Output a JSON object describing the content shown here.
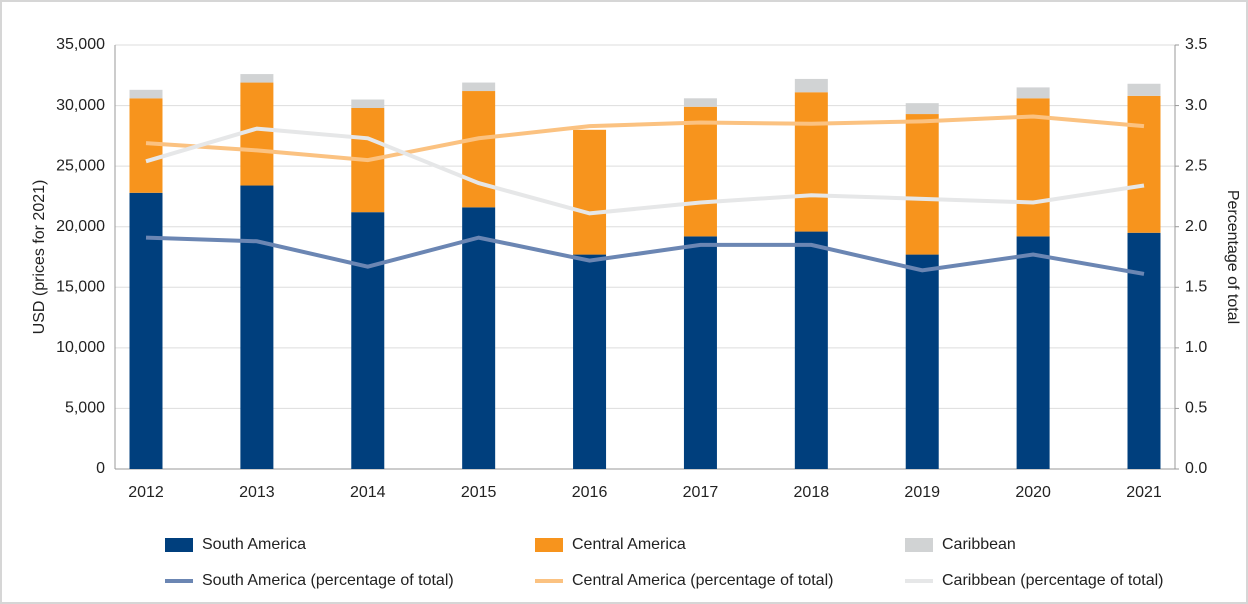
{
  "chart_data": {
    "type": "bar",
    "stacked": true,
    "categories": [
      "2012",
      "2013",
      "2014",
      "2015",
      "2016",
      "2017",
      "2018",
      "2019",
      "2020",
      "2021"
    ],
    "ylabel": "USD (prices for 2021)",
    "y2label": "Percentage of total",
    "ylim": [
      0,
      35000
    ],
    "yticks": [
      0,
      {
        "value": 5000,
        "label": "5,000"
      },
      {
        "value": 10000,
        "label": "10,000"
      },
      {
        "value": 15000,
        "label": "15,000"
      },
      {
        "value": 20000,
        "label": "20,000"
      },
      {
        "value": 25000,
        "label": "25,000"
      },
      {
        "value": 30000,
        "label": "30,000"
      },
      {
        "value": 35000,
        "label": "35,000"
      }
    ],
    "y2lim": [
      0,
      3.5
    ],
    "y2ticks": [
      {
        "value": 0,
        "label": "0.0"
      },
      0.5,
      {
        "value": 1,
        "label": "1.0"
      },
      1.5,
      {
        "value": 2,
        "label": "2.0"
      },
      2.5,
      {
        "value": 3,
        "label": "3.0"
      },
      3.5
    ],
    "grid": true,
    "series": [
      {
        "name": "South America",
        "color": "#003f7d",
        "values": [
          22800,
          23400,
          21200,
          21600,
          17700,
          19200,
          19600,
          17700,
          19200,
          19500
        ]
      },
      {
        "name": "Central America",
        "color": "#f7941d",
        "values": [
          7800,
          8500,
          8600,
          9600,
          10300,
          10700,
          11500,
          11600,
          11400,
          11300
        ]
      },
      {
        "name": "Caribbean",
        "color": "#d1d3d4",
        "values": [
          700,
          700,
          700,
          700,
          0,
          700,
          1100,
          900,
          900,
          1000
        ]
      },
      {
        "name": "South America (percentage of total)",
        "color": "#6b86b3",
        "axis": "y2",
        "values": [
          1.91,
          1.88,
          1.67,
          1.91,
          1.72,
          1.85,
          1.85,
          1.64,
          1.77,
          1.61
        ]
      },
      {
        "name": "Central America (percentage of total)",
        "color": "#fbc281",
        "axis": "y2",
        "values": [
          2.69,
          2.63,
          2.55,
          2.73,
          2.83,
          2.86,
          2.85,
          2.87,
          2.91,
          2.83
        ]
      },
      {
        "name": "Caribbean (percentage of total)",
        "color": "#e6e7e8",
        "axis": "y2",
        "values": [
          2.54,
          2.81,
          2.73,
          2.36,
          2.11,
          2.2,
          2.26,
          2.23,
          2.2,
          2.34
        ]
      }
    ]
  }
}
